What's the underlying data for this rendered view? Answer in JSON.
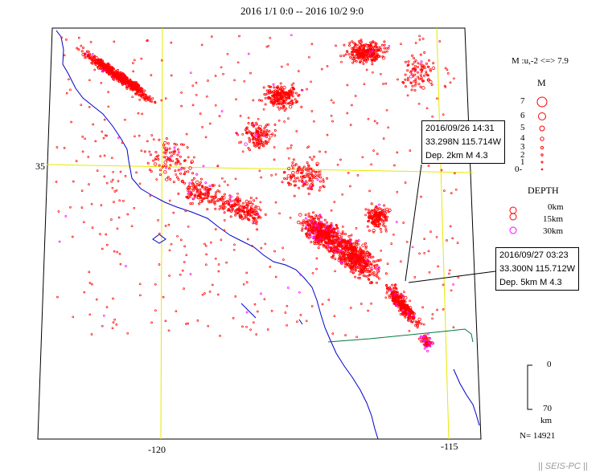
{
  "title": "2016 1/1 0:0 -- 2016 10/2 9:0",
  "axes": {
    "lat_label": "35",
    "lon_label_left": "-120",
    "lon_label_right": "-115"
  },
  "callouts": [
    {
      "line1": "2016/09/26 14:31",
      "line2": "33.298N  115.714W",
      "line3": "Dep. 2km    M 4.3"
    },
    {
      "line1": "2016/09/27 03:23",
      "line2": "33.300N  115.712W",
      "line3": "Dep. 5km    M 4.3"
    }
  ],
  "legend": {
    "magnitude_range": "M :u,-2 <=> 7.9",
    "magnitude_header": "M",
    "magnitude_levels": [
      "7",
      "6",
      "5",
      "4",
      "3",
      "2",
      "1",
      "0-"
    ],
    "depth_header": "DEPTH",
    "depth_levels": [
      "0km",
      "15km",
      "30km"
    ],
    "depth_colors": [
      "#ff0000",
      "#ff0000",
      "#ff00ff"
    ],
    "depth_scale_top": "0",
    "depth_scale_bottom": "70",
    "depth_scale_unit": "km"
  },
  "count": "N= 14921",
  "footer": "|| SEIS-PC ||",
  "colors": {
    "quake_shallow": "#ff0000",
    "quake_deep": "#ff00ff",
    "coastline": "#0000cc",
    "graticule": "#e8e800",
    "border": "#007a3d"
  }
}
